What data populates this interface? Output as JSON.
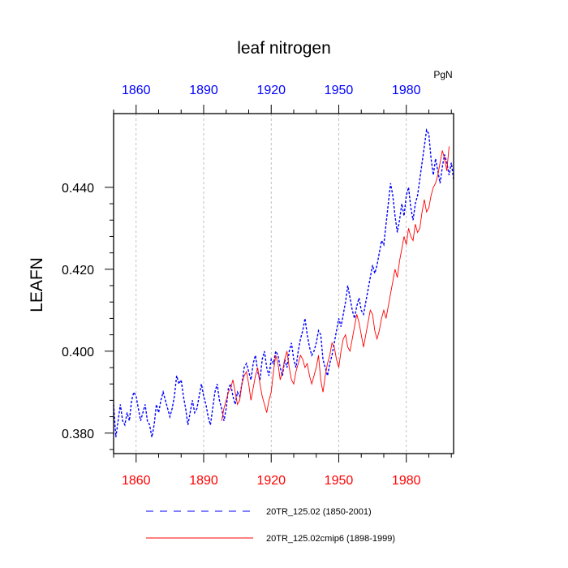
{
  "chart_data": {
    "type": "line",
    "title": "leaf nitrogen",
    "ylabel": "LEAFN",
    "units": "PgN",
    "xlim": [
      1850,
      2001
    ],
    "ylim": [
      0.375,
      0.458
    ],
    "x_ticks": [
      "1860",
      "1890",
      "1920",
      "1950",
      "1980"
    ],
    "x_tick_values": [
      1860,
      1890,
      1920,
      1950,
      1980
    ],
    "y_ticks": [
      "0.380",
      "0.400",
      "0.420",
      "0.440"
    ],
    "y_tick_values": [
      0.38,
      0.4,
      0.42,
      0.44
    ],
    "bottom_tick_color": "#ff0000",
    "top_tick_color": "#0000ff",
    "grid_vertical": true,
    "legend_position": "bottom",
    "series": [
      {
        "name": "20TR_125.02 (1850-2001)",
        "color": "#0000ff",
        "dash": "dashed",
        "x": [
          1850,
          1851,
          1852,
          1853,
          1854,
          1855,
          1856,
          1857,
          1858,
          1859,
          1860,
          1861,
          1862,
          1863,
          1864,
          1865,
          1866,
          1867,
          1868,
          1869,
          1870,
          1871,
          1872,
          1873,
          1874,
          1875,
          1876,
          1877,
          1878,
          1879,
          1880,
          1881,
          1882,
          1883,
          1884,
          1885,
          1886,
          1887,
          1888,
          1889,
          1890,
          1891,
          1892,
          1893,
          1894,
          1895,
          1896,
          1897,
          1898,
          1899,
          1900,
          1901,
          1902,
          1903,
          1904,
          1905,
          1906,
          1907,
          1908,
          1909,
          1910,
          1911,
          1912,
          1913,
          1914,
          1915,
          1916,
          1917,
          1918,
          1919,
          1920,
          1921,
          1922,
          1923,
          1924,
          1925,
          1926,
          1927,
          1928,
          1929,
          1930,
          1931,
          1932,
          1933,
          1934,
          1935,
          1936,
          1937,
          1938,
          1939,
          1940,
          1941,
          1942,
          1943,
          1944,
          1945,
          1946,
          1947,
          1948,
          1949,
          1950,
          1951,
          1952,
          1953,
          1954,
          1955,
          1956,
          1957,
          1958,
          1959,
          1960,
          1961,
          1962,
          1963,
          1964,
          1965,
          1966,
          1967,
          1968,
          1969,
          1970,
          1971,
          1972,
          1973,
          1974,
          1975,
          1976,
          1977,
          1978,
          1979,
          1980,
          1981,
          1982,
          1983,
          1984,
          1985,
          1986,
          1987,
          1988,
          1989,
          1990,
          1991,
          1992,
          1993,
          1994,
          1995,
          1996,
          1997,
          1998,
          1999,
          2000,
          2001
        ],
        "y": [
          0.387,
          0.379,
          0.383,
          0.387,
          0.383,
          0.382,
          0.385,
          0.383,
          0.388,
          0.39,
          0.389,
          0.386,
          0.383,
          0.385,
          0.387,
          0.383,
          0.382,
          0.379,
          0.382,
          0.387,
          0.385,
          0.388,
          0.39,
          0.388,
          0.386,
          0.384,
          0.386,
          0.389,
          0.394,
          0.392,
          0.393,
          0.389,
          0.386,
          0.382,
          0.385,
          0.388,
          0.385,
          0.386,
          0.389,
          0.392,
          0.389,
          0.387,
          0.384,
          0.382,
          0.386,
          0.39,
          0.392,
          0.388,
          0.386,
          0.383,
          0.386,
          0.391,
          0.392,
          0.389,
          0.387,
          0.39,
          0.389,
          0.392,
          0.396,
          0.397,
          0.395,
          0.393,
          0.397,
          0.399,
          0.395,
          0.393,
          0.398,
          0.4,
          0.396,
          0.394,
          0.398,
          0.397,
          0.4,
          0.399,
          0.396,
          0.394,
          0.398,
          0.396,
          0.4,
          0.402,
          0.398,
          0.396,
          0.4,
          0.403,
          0.405,
          0.408,
          0.404,
          0.401,
          0.399,
          0.4,
          0.402,
          0.405,
          0.404,
          0.398,
          0.396,
          0.394,
          0.397,
          0.399,
          0.402,
          0.405,
          0.408,
          0.406,
          0.409,
          0.412,
          0.416,
          0.413,
          0.41,
          0.408,
          0.411,
          0.413,
          0.41,
          0.409,
          0.412,
          0.415,
          0.418,
          0.421,
          0.419,
          0.421,
          0.424,
          0.427,
          0.426,
          0.431,
          0.436,
          0.441,
          0.438,
          0.433,
          0.429,
          0.432,
          0.436,
          0.433,
          0.438,
          0.44,
          0.435,
          0.432,
          0.436,
          0.438,
          0.442,
          0.446,
          0.45,
          0.454,
          0.453,
          0.447,
          0.443,
          0.447,
          0.444,
          0.441,
          0.445,
          0.448,
          0.446,
          0.443,
          0.446,
          0.442
        ],
        "x_note": "1850-2001"
      },
      {
        "name": "20TR_125.02cmip6 (1898-1999)",
        "color": "#ff0000",
        "dash": "solid",
        "x": [
          1898,
          1899,
          1900,
          1901,
          1902,
          1903,
          1904,
          1905,
          1906,
          1907,
          1908,
          1909,
          1910,
          1911,
          1912,
          1913,
          1914,
          1915,
          1916,
          1917,
          1918,
          1919,
          1920,
          1921,
          1922,
          1923,
          1924,
          1925,
          1926,
          1927,
          1928,
          1929,
          1930,
          1931,
          1932,
          1933,
          1934,
          1935,
          1936,
          1937,
          1938,
          1939,
          1940,
          1941,
          1942,
          1943,
          1944,
          1945,
          1946,
          1947,
          1948,
          1949,
          1950,
          1951,
          1952,
          1953,
          1954,
          1955,
          1956,
          1957,
          1958,
          1959,
          1960,
          1961,
          1962,
          1963,
          1964,
          1965,
          1966,
          1967,
          1968,
          1969,
          1970,
          1971,
          1972,
          1973,
          1974,
          1975,
          1976,
          1977,
          1978,
          1979,
          1980,
          1981,
          1982,
          1983,
          1984,
          1985,
          1986,
          1987,
          1988,
          1989,
          1990,
          1991,
          1992,
          1993,
          1994,
          1995,
          1996,
          1997,
          1998,
          1999
        ],
        "y": [
          0.383,
          0.386,
          0.388,
          0.39,
          0.391,
          0.393,
          0.39,
          0.387,
          0.388,
          0.392,
          0.394,
          0.395,
          0.392,
          0.388,
          0.391,
          0.394,
          0.396,
          0.392,
          0.389,
          0.387,
          0.385,
          0.388,
          0.39,
          0.395,
          0.399,
          0.397,
          0.393,
          0.395,
          0.398,
          0.4,
          0.396,
          0.393,
          0.392,
          0.395,
          0.397,
          0.399,
          0.398,
          0.396,
          0.397,
          0.394,
          0.392,
          0.394,
          0.396,
          0.399,
          0.393,
          0.39,
          0.394,
          0.397,
          0.399,
          0.402,
          0.401,
          0.398,
          0.396,
          0.4,
          0.403,
          0.404,
          0.401,
          0.4,
          0.403,
          0.406,
          0.409,
          0.407,
          0.404,
          0.401,
          0.404,
          0.407,
          0.41,
          0.409,
          0.405,
          0.403,
          0.405,
          0.408,
          0.41,
          0.408,
          0.411,
          0.414,
          0.417,
          0.42,
          0.418,
          0.422,
          0.425,
          0.428,
          0.426,
          0.43,
          0.428,
          0.427,
          0.431,
          0.429,
          0.43,
          0.434,
          0.437,
          0.434,
          0.435,
          0.438,
          0.44,
          0.441,
          0.443,
          0.446,
          0.449,
          0.447,
          0.444,
          0.45
        ],
        "x_note": "1898-1999"
      }
    ]
  }
}
